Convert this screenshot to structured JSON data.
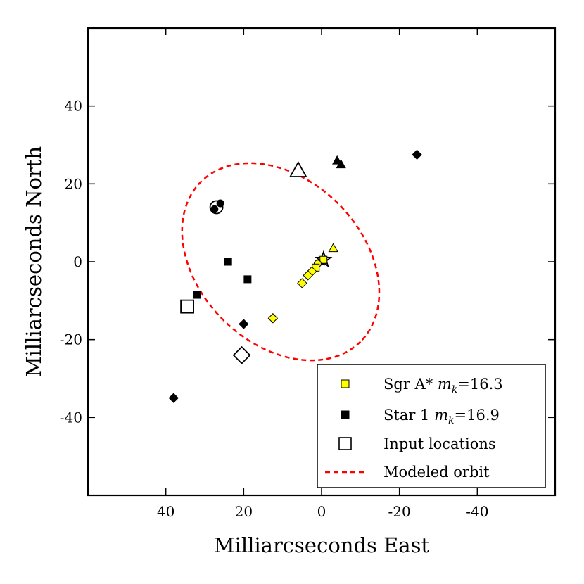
{
  "chart_data": {
    "type": "scatter",
    "title": "",
    "xlabel": "Milliarcseconds East",
    "ylabel": "Milliarcseconds North",
    "xlim": [
      60,
      -60
    ],
    "ylim": [
      -60,
      60
    ],
    "x_ticks": [
      40,
      20,
      0,
      -20,
      -40
    ],
    "x_tick_labels": [
      "40",
      "20",
      "0",
      "-20",
      "-40"
    ],
    "y_ticks": [
      40,
      20,
      0,
      -20,
      -40
    ],
    "y_tick_labels": [
      "40",
      "20",
      "0",
      "-20",
      "-40"
    ],
    "legend_position": "bottom-right",
    "series": [
      {
        "name": "Sgr A*",
        "legend_text": "Sgr A* ",
        "legend_sub": "m",
        "legend_subscript": "k",
        "legend_value": "=16.3",
        "color": "#ffff00",
        "points": [
          {
            "x": -3,
            "y": 3.5,
            "marker": "triangle"
          },
          {
            "x": -0.5,
            "y": 0.5,
            "marker": "square"
          },
          {
            "x": 1,
            "y": -0.5,
            "marker": "circle"
          },
          {
            "x": 1.5,
            "y": -1.5,
            "marker": "square"
          },
          {
            "x": 2.5,
            "y": -2.5,
            "marker": "diamond"
          },
          {
            "x": 3.5,
            "y": -3.5,
            "marker": "diamond"
          },
          {
            "x": 5,
            "y": -5.5,
            "marker": "diamond"
          },
          {
            "x": 12.5,
            "y": -14.5,
            "marker": "diamond"
          }
        ]
      },
      {
        "name": "Star 1",
        "legend_text": "Star 1 ",
        "legend_sub": "m",
        "legend_subscript": "k",
        "legend_value": "=16.9",
        "color": "#000000",
        "points": [
          {
            "x": -4,
            "y": 26,
            "marker": "triangle"
          },
          {
            "x": -5,
            "y": 25,
            "marker": "triangle"
          },
          {
            "x": 26,
            "y": 15,
            "marker": "circle"
          },
          {
            "x": 27.5,
            "y": 13.5,
            "marker": "circle"
          },
          {
            "x": 24,
            "y": 0,
            "marker": "square"
          },
          {
            "x": 19,
            "y": -4.5,
            "marker": "square"
          },
          {
            "x": 32,
            "y": -8.5,
            "marker": "square"
          },
          {
            "x": 20,
            "y": -16,
            "marker": "diamond"
          },
          {
            "x": -24.5,
            "y": 27.5,
            "marker": "diamond"
          },
          {
            "x": 38,
            "y": -35,
            "marker": "diamond"
          },
          {
            "x": 0,
            "y": 0,
            "marker": "star"
          }
        ]
      },
      {
        "name": "Input locations",
        "legend_text": "Input locations",
        "color": "#ffffff",
        "points": [
          {
            "x": 6,
            "y": 23.5,
            "marker": "triangle"
          },
          {
            "x": 27,
            "y": 14,
            "marker": "circle"
          },
          {
            "x": 34.5,
            "y": -11.5,
            "marker": "square"
          },
          {
            "x": 20.5,
            "y": -24,
            "marker": "diamond"
          },
          {
            "x": -0.5,
            "y": 0.5,
            "marker": "star"
          }
        ]
      }
    ],
    "orbit": {
      "name": "Modeled orbit",
      "legend_text": "Modeled orbit",
      "color": "#ff0000",
      "style": "dashed",
      "center": [
        10.5,
        0
      ],
      "semi_major": 29,
      "semi_minor": 21,
      "rotation_deg": 45
    }
  }
}
